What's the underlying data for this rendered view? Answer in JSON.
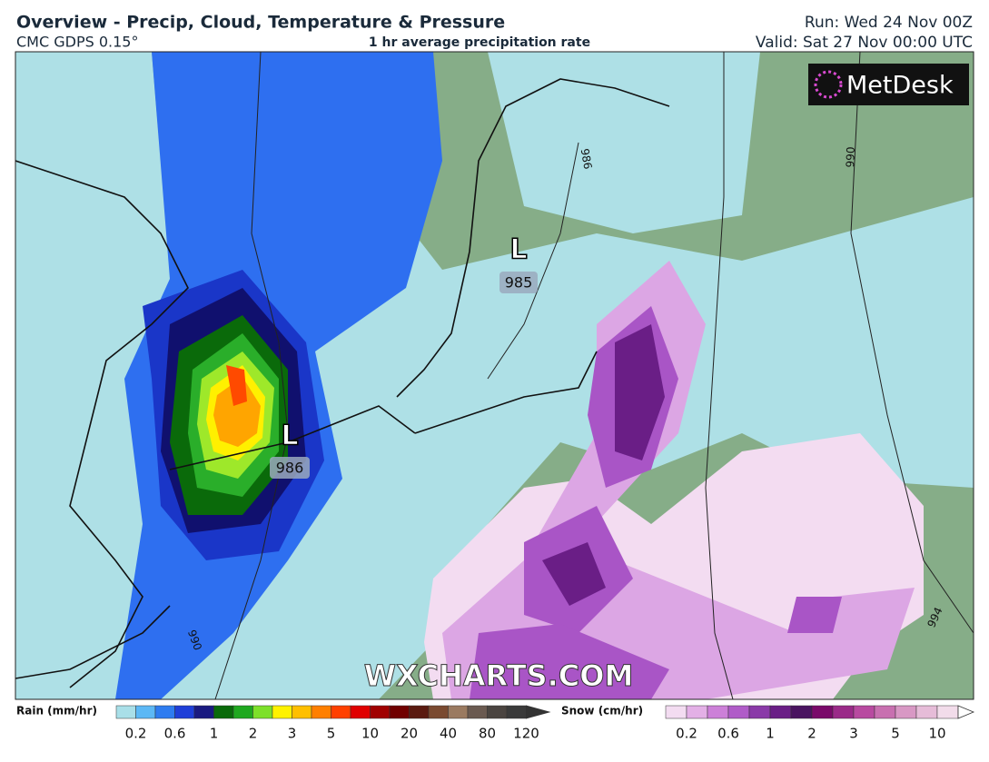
{
  "header": {
    "title": "Overview - Precip, Cloud, Temperature & Pressure",
    "model": "CMC GDPS 0.15°",
    "product": "1 hr average precipitation rate",
    "run": "Run: Wed 24 Nov 00Z",
    "valid": "Valid: Sat 27 Nov 00:00 UTC"
  },
  "map": {
    "logo": "MetDesk",
    "watermark": "WXCHARTS.COM",
    "lows": [
      {
        "symbol": "L",
        "pressure": "985"
      },
      {
        "symbol": "L",
        "pressure": "986"
      }
    ],
    "isobar_labels": [
      "986",
      "990",
      "990",
      "994"
    ]
  },
  "legend": {
    "rain": {
      "label": "Rain (mm/hr)",
      "ticks": [
        0.2,
        0.6,
        1,
        2,
        3,
        5,
        10,
        20,
        40,
        80,
        120
      ]
    },
    "snow": {
      "label": "Snow (cm/hr)",
      "ticks": [
        0.2,
        0.6,
        1,
        2,
        3,
        5,
        10
      ]
    }
  }
}
